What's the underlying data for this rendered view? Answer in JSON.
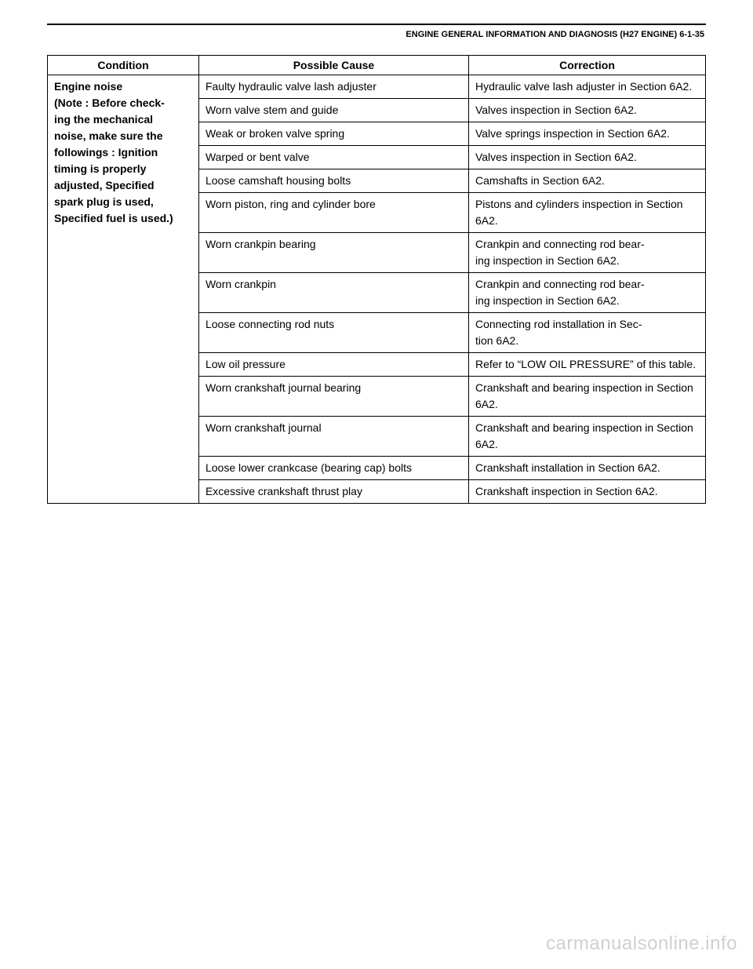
{
  "header": {
    "title": "ENGINE GENERAL INFORMATION AND DIAGNOSIS (H27 ENGINE) 6-1-35"
  },
  "table": {
    "headers": {
      "condition": "Condition",
      "cause": "Possible Cause",
      "correction": "Correction"
    },
    "condition_text": "Engine noise\n(Note : Before checking the mechanical noise, make sure the followings : Ignition timing is properly adjusted, Specified spark plug is used, Specified fuel is used.)",
    "rows": [
      {
        "cause": "Faulty hydraulic valve lash adjuster",
        "correction": "Hydraulic valve lash adjuster in Section 6A2."
      },
      {
        "cause": "Worn valve stem and guide",
        "correction": "Valves inspection in Section 6A2."
      },
      {
        "cause": "Weak or broken valve spring",
        "correction": "Valve springs inspection in Section 6A2."
      },
      {
        "cause": "Warped or bent valve",
        "correction": "Valves inspection in Section 6A2."
      },
      {
        "cause": "Loose camshaft housing bolts",
        "correction": "Camshafts in Section 6A2."
      },
      {
        "cause": "Worn piston, ring and cylinder bore",
        "correction": "Pistons and cylinders inspection in Section 6A2."
      },
      {
        "cause": "Worn crankpin bearing",
        "correction": "Crankpin and connecting rod bearing inspection in Section 6A2."
      },
      {
        "cause": "Worn crankpin",
        "correction": "Crankpin and connecting rod bearing inspection in Section 6A2."
      },
      {
        "cause": "Loose connecting rod nuts",
        "correction": "Connecting rod installation in Section 6A2."
      },
      {
        "cause": "Low oil pressure",
        "correction": "Refer to “LOW OIL PRESSURE” of this table."
      },
      {
        "cause": "Worn crankshaft journal bearing",
        "correction": "Crankshaft and bearing inspection in Section 6A2."
      },
      {
        "cause": "Worn crankshaft journal",
        "correction": "Crankshaft and bearing inspection in Section 6A2."
      },
      {
        "cause": "Loose lower crankcase (bearing cap) bolts",
        "correction": "Crankshaft installation in Section 6A2."
      },
      {
        "cause": "Excessive crankshaft thrust play",
        "correction": "Crankshaft inspection in Section 6A2."
      }
    ]
  },
  "watermark": "carmanualsonline.info"
}
